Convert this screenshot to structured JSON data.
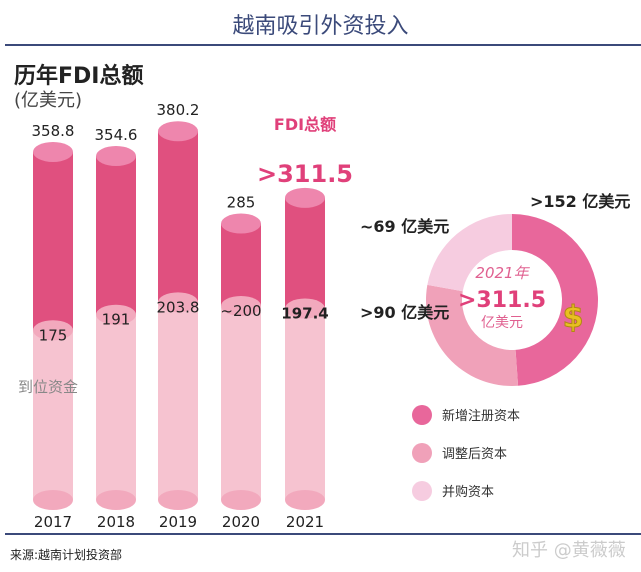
{
  "header": {
    "title": "越南吸引外资投入",
    "subtitle": "历年FDI总额",
    "unit": "(亿美元)"
  },
  "footer": {
    "source": "来源:越南计划投资部",
    "watermark": "知乎 @黄薇薇"
  },
  "chart_data": [
    {
      "type": "bar",
      "title": "历年FDI总额",
      "ylabel": "(亿美元)",
      "categories": [
        "2017",
        "2018",
        "2019",
        "2020",
        "2021"
      ],
      "series": [
        {
          "name": "FDI总额",
          "values": [
            358.8,
            354.6,
            380.2,
            285,
            311.5
          ],
          "labels": [
            "358.8",
            "354.6",
            "380.2",
            "285",
            ">311.5"
          ]
        },
        {
          "name": "到位资金",
          "values": [
            175,
            191,
            203.8,
            200,
            197.4
          ],
          "labels": [
            "175",
            "191",
            "203.8",
            "~200",
            "197.4"
          ]
        }
      ],
      "annotation": "FDI总额",
      "colors": {
        "total": "#e0507f",
        "disbursed": "#f6c3d0"
      }
    },
    {
      "type": "pie",
      "center_title": "2021年",
      "center_value": ">311.5",
      "center_unit": "亿美元",
      "slices": [
        {
          "name": "新增注册资本",
          "value": 152,
          "label": ">152 亿美元",
          "color": "#e8679b"
        },
        {
          "name": "调整后资本",
          "value": 90,
          "label": ">90 亿美元",
          "color": "#f0a1b9"
        },
        {
          "name": "并购资本",
          "value": 69,
          "label": "~69 亿美元",
          "color": "#f6cce0"
        }
      ]
    }
  ]
}
